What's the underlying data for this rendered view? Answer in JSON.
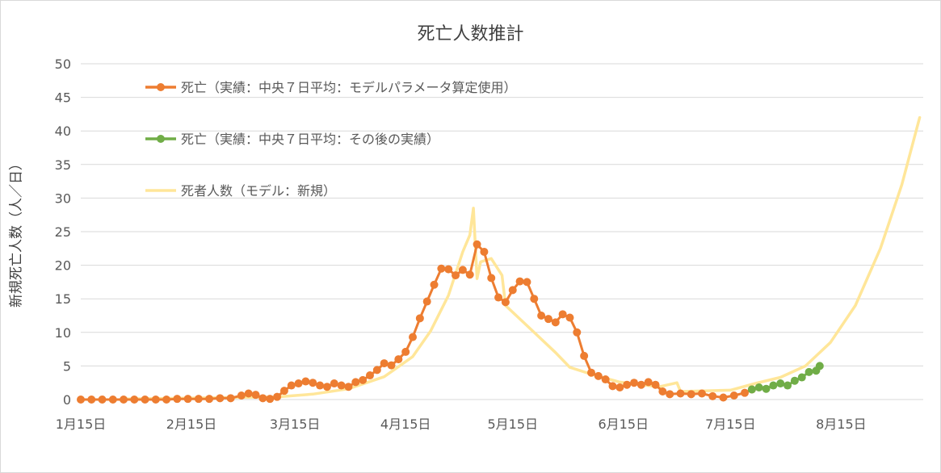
{
  "chart_data": {
    "type": "line",
    "title": "死亡人数推計",
    "xlabel": "",
    "ylabel": "新規死亡人数（人／日）",
    "ylim": [
      0,
      50
    ],
    "yticks": [
      0,
      5,
      10,
      15,
      20,
      25,
      30,
      35,
      40,
      45,
      50
    ],
    "x_tick_labels": [
      "1月15日",
      "2月15日",
      "3月15日",
      "4月15日",
      "5月15日",
      "6月15日",
      "7月15日",
      "8月15日"
    ],
    "x_tick_dates": [
      "2020-01-15",
      "2020-02-15",
      "2020-03-15",
      "2020-04-15",
      "2020-05-15",
      "2020-06-15",
      "2020-07-15",
      "2020-08-15"
    ],
    "xlim": [
      "2020-01-15",
      "2020-09-07"
    ],
    "grid": true,
    "legend_position": "top-left",
    "series": [
      {
        "name": "死亡（実績：中央７日平均：モデルパラメータ算定使用）",
        "color": "#ED7D31",
        "marker": true,
        "points": [
          [
            "2020-01-15",
            0
          ],
          [
            "2020-01-18",
            0
          ],
          [
            "2020-01-21",
            0
          ],
          [
            "2020-01-24",
            0
          ],
          [
            "2020-01-27",
            0
          ],
          [
            "2020-01-30",
            0
          ],
          [
            "2020-02-02",
            0
          ],
          [
            "2020-02-05",
            0
          ],
          [
            "2020-02-08",
            0
          ],
          [
            "2020-02-11",
            0.1
          ],
          [
            "2020-02-14",
            0.1
          ],
          [
            "2020-02-17",
            0.1
          ],
          [
            "2020-02-20",
            0.1
          ],
          [
            "2020-02-23",
            0.2
          ],
          [
            "2020-02-26",
            0.2
          ],
          [
            "2020-02-29",
            0.6
          ],
          [
            "2020-03-02",
            0.9
          ],
          [
            "2020-03-04",
            0.7
          ],
          [
            "2020-03-06",
            0.2
          ],
          [
            "2020-03-08",
            0.1
          ],
          [
            "2020-03-10",
            0.4
          ],
          [
            "2020-03-12",
            1.3
          ],
          [
            "2020-03-14",
            2.1
          ],
          [
            "2020-03-16",
            2.4
          ],
          [
            "2020-03-18",
            2.7
          ],
          [
            "2020-03-20",
            2.5
          ],
          [
            "2020-03-22",
            2.1
          ],
          [
            "2020-03-24",
            1.9
          ],
          [
            "2020-03-26",
            2.4
          ],
          [
            "2020-03-28",
            2.1
          ],
          [
            "2020-03-30",
            1.9
          ],
          [
            "2020-04-01",
            2.6
          ],
          [
            "2020-04-03",
            2.9
          ],
          [
            "2020-04-05",
            3.6
          ],
          [
            "2020-04-07",
            4.4
          ],
          [
            "2020-04-09",
            5.4
          ],
          [
            "2020-04-11",
            5.1
          ],
          [
            "2020-04-13",
            6.0
          ],
          [
            "2020-04-15",
            7.1
          ],
          [
            "2020-04-17",
            9.3
          ],
          [
            "2020-04-19",
            12.1
          ],
          [
            "2020-04-21",
            14.6
          ],
          [
            "2020-04-23",
            17.1
          ],
          [
            "2020-04-25",
            19.5
          ],
          [
            "2020-04-27",
            19.4
          ],
          [
            "2020-04-29",
            18.5
          ],
          [
            "2020-05-01",
            19.3
          ],
          [
            "2020-05-03",
            18.6
          ],
          [
            "2020-05-05",
            23.1
          ],
          [
            "2020-05-07",
            22.0
          ],
          [
            "2020-05-09",
            18.1
          ],
          [
            "2020-05-11",
            15.2
          ],
          [
            "2020-05-13",
            14.5
          ],
          [
            "2020-05-15",
            16.3
          ],
          [
            "2020-05-17",
            17.6
          ],
          [
            "2020-05-19",
            17.5
          ],
          [
            "2020-05-21",
            15.0
          ],
          [
            "2020-05-23",
            12.5
          ],
          [
            "2020-05-25",
            12.0
          ],
          [
            "2020-05-27",
            11.5
          ],
          [
            "2020-05-29",
            12.7
          ],
          [
            "2020-05-31",
            12.2
          ],
          [
            "2020-06-02",
            10.0
          ],
          [
            "2020-06-04",
            6.5
          ],
          [
            "2020-06-06",
            4.0
          ],
          [
            "2020-06-08",
            3.5
          ],
          [
            "2020-06-10",
            3.0
          ],
          [
            "2020-06-12",
            2.0
          ],
          [
            "2020-06-14",
            1.8
          ],
          [
            "2020-06-16",
            2.2
          ],
          [
            "2020-06-18",
            2.5
          ],
          [
            "2020-06-20",
            2.2
          ],
          [
            "2020-06-22",
            2.6
          ],
          [
            "2020-06-24",
            2.2
          ],
          [
            "2020-06-26",
            1.2
          ],
          [
            "2020-06-28",
            0.8
          ],
          [
            "2020-07-01",
            0.9
          ],
          [
            "2020-07-04",
            0.8
          ],
          [
            "2020-07-07",
            0.9
          ],
          [
            "2020-07-10",
            0.5
          ],
          [
            "2020-07-13",
            0.3
          ],
          [
            "2020-07-16",
            0.6
          ],
          [
            "2020-07-19",
            1.0
          ],
          [
            "2020-07-21",
            1.5
          ]
        ]
      },
      {
        "name": "死亡（実績：中央７日平均：その後の実績）",
        "color": "#70AD47",
        "marker": true,
        "points": [
          [
            "2020-07-21",
            1.5
          ],
          [
            "2020-07-23",
            1.8
          ],
          [
            "2020-07-25",
            1.6
          ],
          [
            "2020-07-27",
            2.1
          ],
          [
            "2020-07-29",
            2.4
          ],
          [
            "2020-07-31",
            2.1
          ],
          [
            "2020-08-02",
            2.8
          ],
          [
            "2020-08-04",
            3.3
          ],
          [
            "2020-08-06",
            4.1
          ],
          [
            "2020-08-08",
            4.3
          ],
          [
            "2020-08-09",
            5.0
          ]
        ]
      },
      {
        "name": "死者人数（モデル：新規）",
        "color": "#FFE699",
        "marker": false,
        "points": [
          [
            "2020-01-28",
            0.1
          ],
          [
            "2020-02-25",
            0.3
          ],
          [
            "2020-03-10",
            0.4
          ],
          [
            "2020-03-20",
            0.8
          ],
          [
            "2020-03-30",
            1.6
          ],
          [
            "2020-04-09",
            3.4
          ],
          [
            "2020-04-17",
            6.4
          ],
          [
            "2020-04-22",
            10.2
          ],
          [
            "2020-04-27",
            15.5
          ],
          [
            "2020-05-01",
            22.0
          ],
          [
            "2020-05-03",
            24.5
          ],
          [
            "2020-05-04",
            28.5
          ],
          [
            "2020-05-05",
            18.0
          ],
          [
            "2020-05-06",
            20.5
          ],
          [
            "2020-05-09",
            21.0
          ],
          [
            "2020-05-12",
            18.5
          ],
          [
            "2020-05-13",
            14.0
          ],
          [
            "2020-05-16",
            12.5
          ],
          [
            "2020-05-20",
            10.5
          ],
          [
            "2020-05-27",
            7.0
          ],
          [
            "2020-05-31",
            4.8
          ],
          [
            "2020-06-07",
            3.6
          ],
          [
            "2020-06-14",
            2.6
          ],
          [
            "2020-06-25",
            1.9
          ],
          [
            "2020-06-30",
            2.5
          ],
          [
            "2020-07-01",
            1.2
          ],
          [
            "2020-07-15",
            1.4
          ],
          [
            "2020-07-22",
            2.4
          ],
          [
            "2020-07-29",
            3.3
          ],
          [
            "2020-08-05",
            5.0
          ],
          [
            "2020-08-12",
            8.5
          ],
          [
            "2020-08-19",
            14.0
          ],
          [
            "2020-08-26",
            22.5
          ],
          [
            "2020-09-01",
            32.0
          ],
          [
            "2020-09-06",
            42.0
          ]
        ]
      }
    ]
  }
}
